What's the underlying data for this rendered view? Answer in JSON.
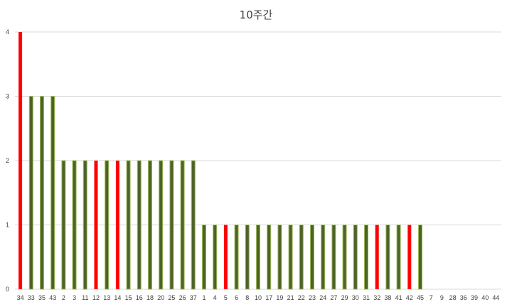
{
  "chart_data": {
    "type": "bar",
    "title": "10주간",
    "xlabel": "",
    "ylabel": "",
    "ylim": [
      0,
      4
    ],
    "yticks": [
      "0",
      "1",
      "2",
      "3",
      "4"
    ],
    "grid": true,
    "categories": [
      "34",
      "33",
      "35",
      "43",
      "2",
      "3",
      "11",
      "12",
      "13",
      "14",
      "15",
      "16",
      "18",
      "20",
      "25",
      "26",
      "37",
      "1",
      "4",
      "5",
      "6",
      "8",
      "10",
      "17",
      "19",
      "21",
      "22",
      "23",
      "24",
      "27",
      "29",
      "30",
      "31",
      "32",
      "38",
      "41",
      "42",
      "45",
      "7",
      "9",
      "28",
      "36",
      "39",
      "40",
      "44"
    ],
    "values": [
      4,
      3,
      3,
      3,
      2,
      2,
      2,
      2,
      2,
      2,
      2,
      2,
      2,
      2,
      2,
      2,
      2,
      1,
      1,
      1,
      1,
      1,
      1,
      1,
      1,
      1,
      1,
      1,
      1,
      1,
      1,
      1,
      1,
      1,
      1,
      1,
      1,
      1,
      0,
      0,
      0,
      0,
      0,
      0,
      0
    ],
    "highlighted": [
      "34",
      "12",
      "14",
      "5",
      "32",
      "42"
    ],
    "colors": {
      "default_fill": "#4f6228",
      "default_edge": "#9bbb59",
      "highlight_fill": "#ff0000",
      "grid": "#d9d9d9",
      "text": "#404040"
    }
  }
}
